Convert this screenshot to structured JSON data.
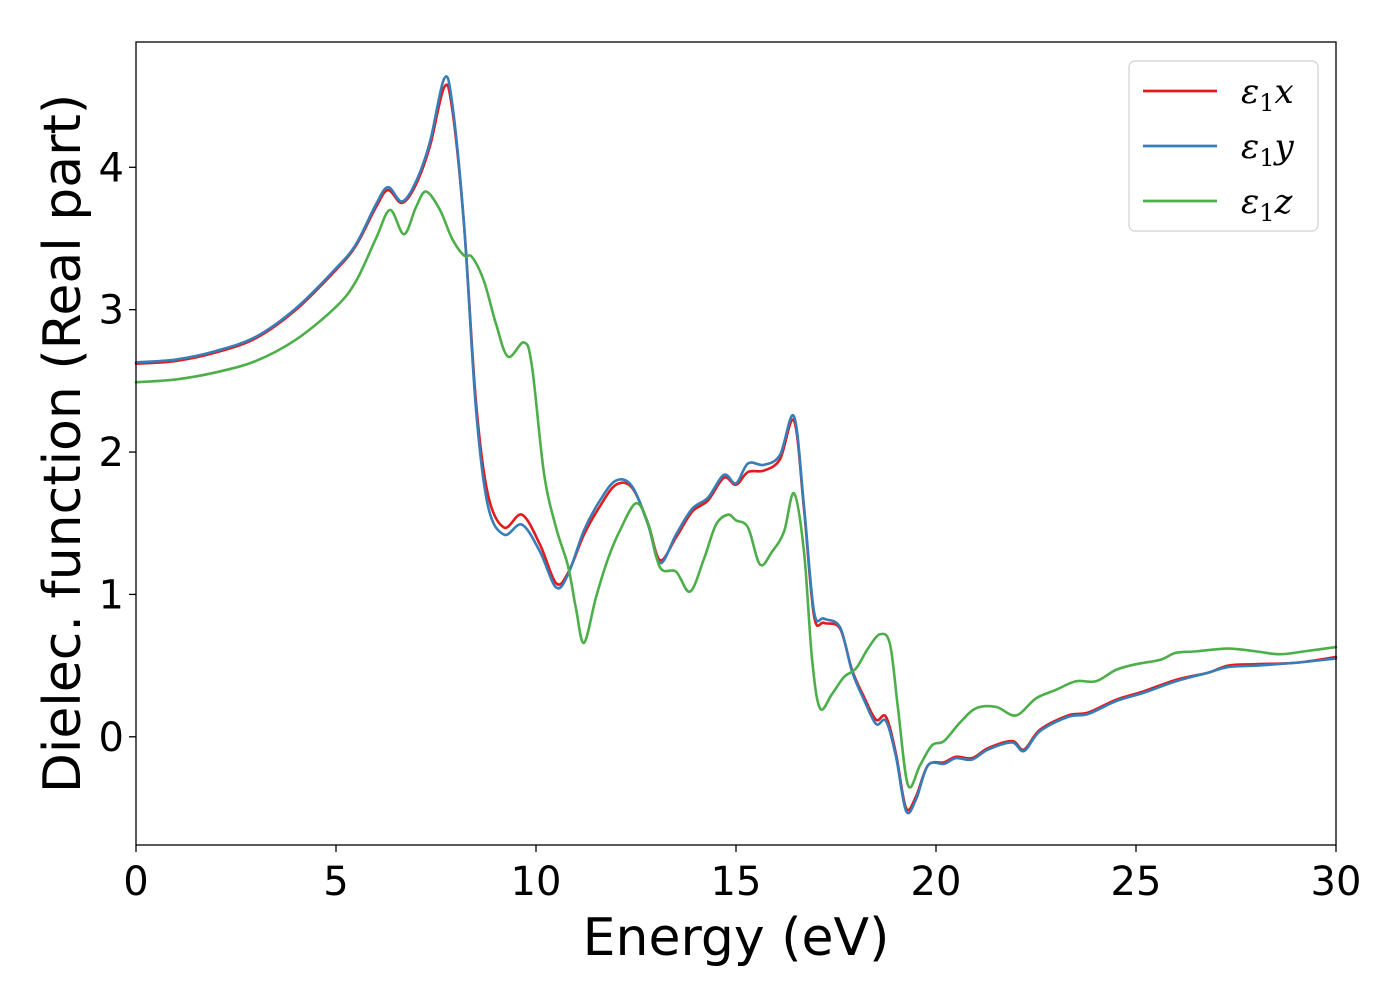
{
  "chart_data": {
    "type": "line",
    "xlabel": "Energy (eV)",
    "ylabel": "Dielec. function (Real part)",
    "xlim": [
      0,
      30
    ],
    "ylim": [
      -0.76,
      4.88
    ],
    "xticks": [
      0,
      5,
      10,
      15,
      20,
      25,
      30
    ],
    "yticks": [
      0,
      1,
      2,
      3,
      4
    ],
    "grid": false,
    "legend_position": "top-right",
    "series": [
      {
        "name": "ε1x",
        "symbol": "ε",
        "sub": "1",
        "suffix": "x",
        "color": "#e41a1c",
        "points": [
          [
            0,
            2.62
          ],
          [
            1,
            2.64
          ],
          [
            2,
            2.7
          ],
          [
            3,
            2.8
          ],
          [
            4,
            3.0
          ],
          [
            5,
            3.28
          ],
          [
            5.5,
            3.45
          ],
          [
            6,
            3.72
          ],
          [
            6.3,
            3.84
          ],
          [
            6.65,
            3.75
          ],
          [
            7,
            3.88
          ],
          [
            7.35,
            4.15
          ],
          [
            7.7,
            4.56
          ],
          [
            7.9,
            4.42
          ],
          [
            8.2,
            3.6
          ],
          [
            8.5,
            2.35
          ],
          [
            8.8,
            1.7
          ],
          [
            9.2,
            1.47
          ],
          [
            9.65,
            1.56
          ],
          [
            10.1,
            1.35
          ],
          [
            10.5,
            1.08
          ],
          [
            10.8,
            1.15
          ],
          [
            11.2,
            1.42
          ],
          [
            11.6,
            1.62
          ],
          [
            12.0,
            1.77
          ],
          [
            12.4,
            1.75
          ],
          [
            12.8,
            1.5
          ],
          [
            13.1,
            1.24
          ],
          [
            13.5,
            1.4
          ],
          [
            13.9,
            1.58
          ],
          [
            14.3,
            1.66
          ],
          [
            14.7,
            1.82
          ],
          [
            15.0,
            1.77
          ],
          [
            15.3,
            1.86
          ],
          [
            15.7,
            1.87
          ],
          [
            16.1,
            1.95
          ],
          [
            16.45,
            2.22
          ],
          [
            16.7,
            1.6
          ],
          [
            16.95,
            0.85
          ],
          [
            17.2,
            0.8
          ],
          [
            17.6,
            0.76
          ],
          [
            17.9,
            0.47
          ],
          [
            18.2,
            0.28
          ],
          [
            18.5,
            0.12
          ],
          [
            18.75,
            0.14
          ],
          [
            19.0,
            -0.12
          ],
          [
            19.25,
            -0.5
          ],
          [
            19.5,
            -0.42
          ],
          [
            19.8,
            -0.2
          ],
          [
            20.2,
            -0.18
          ],
          [
            20.5,
            -0.14
          ],
          [
            20.9,
            -0.15
          ],
          [
            21.3,
            -0.08
          ],
          [
            21.9,
            -0.03
          ],
          [
            22.2,
            -0.09
          ],
          [
            22.6,
            0.05
          ],
          [
            23.3,
            0.15
          ],
          [
            23.8,
            0.17
          ],
          [
            24.5,
            0.26
          ],
          [
            25.2,
            0.32
          ],
          [
            26.0,
            0.4
          ],
          [
            26.8,
            0.45
          ],
          [
            27.3,
            0.5
          ],
          [
            28.0,
            0.51
          ],
          [
            29.0,
            0.52
          ],
          [
            30,
            0.56
          ]
        ]
      },
      {
        "name": "ε1y",
        "symbol": "ε",
        "sub": "1",
        "suffix": "y",
        "color": "#377eb8",
        "points": [
          [
            0,
            2.63
          ],
          [
            1,
            2.65
          ],
          [
            2,
            2.71
          ],
          [
            3,
            2.81
          ],
          [
            4,
            3.01
          ],
          [
            5,
            3.29
          ],
          [
            5.5,
            3.46
          ],
          [
            6,
            3.74
          ],
          [
            6.3,
            3.86
          ],
          [
            6.65,
            3.76
          ],
          [
            7,
            3.9
          ],
          [
            7.35,
            4.18
          ],
          [
            7.7,
            4.62
          ],
          [
            7.9,
            4.46
          ],
          [
            8.2,
            3.6
          ],
          [
            8.5,
            2.3
          ],
          [
            8.8,
            1.62
          ],
          [
            9.2,
            1.42
          ],
          [
            9.65,
            1.49
          ],
          [
            10.1,
            1.3
          ],
          [
            10.5,
            1.05
          ],
          [
            10.8,
            1.14
          ],
          [
            11.2,
            1.45
          ],
          [
            11.6,
            1.66
          ],
          [
            12.0,
            1.8
          ],
          [
            12.4,
            1.76
          ],
          [
            12.8,
            1.49
          ],
          [
            13.1,
            1.22
          ],
          [
            13.5,
            1.42
          ],
          [
            13.9,
            1.6
          ],
          [
            14.3,
            1.68
          ],
          [
            14.7,
            1.84
          ],
          [
            15.0,
            1.78
          ],
          [
            15.3,
            1.92
          ],
          [
            15.7,
            1.91
          ],
          [
            16.1,
            1.98
          ],
          [
            16.45,
            2.25
          ],
          [
            16.7,
            1.62
          ],
          [
            16.95,
            0.88
          ],
          [
            17.2,
            0.83
          ],
          [
            17.6,
            0.77
          ],
          [
            17.9,
            0.46
          ],
          [
            18.2,
            0.26
          ],
          [
            18.5,
            0.09
          ],
          [
            18.75,
            0.11
          ],
          [
            19.0,
            -0.14
          ],
          [
            19.25,
            -0.52
          ],
          [
            19.5,
            -0.44
          ],
          [
            19.8,
            -0.2
          ],
          [
            20.2,
            -0.19
          ],
          [
            20.5,
            -0.15
          ],
          [
            20.9,
            -0.16
          ],
          [
            21.3,
            -0.09
          ],
          [
            21.9,
            -0.04
          ],
          [
            22.2,
            -0.1
          ],
          [
            22.6,
            0.04
          ],
          [
            23.3,
            0.14
          ],
          [
            23.8,
            0.16
          ],
          [
            24.5,
            0.25
          ],
          [
            25.2,
            0.31
          ],
          [
            26.0,
            0.39
          ],
          [
            26.8,
            0.45
          ],
          [
            27.3,
            0.49
          ],
          [
            28.0,
            0.5
          ],
          [
            29.0,
            0.52
          ],
          [
            30,
            0.55
          ]
        ]
      },
      {
        "name": "ε1z",
        "symbol": "ε",
        "sub": "1",
        "suffix": "z",
        "color": "#4daf4a",
        "points": [
          [
            0,
            2.49
          ],
          [
            1,
            2.51
          ],
          [
            2,
            2.56
          ],
          [
            3,
            2.64
          ],
          [
            4,
            2.79
          ],
          [
            5,
            3.02
          ],
          [
            5.5,
            3.2
          ],
          [
            6,
            3.5
          ],
          [
            6.35,
            3.7
          ],
          [
            6.7,
            3.53
          ],
          [
            7,
            3.72
          ],
          [
            7.25,
            3.83
          ],
          [
            7.6,
            3.7
          ],
          [
            7.9,
            3.5
          ],
          [
            8.2,
            3.38
          ],
          [
            8.4,
            3.37
          ],
          [
            8.7,
            3.2
          ],
          [
            9.0,
            2.9
          ],
          [
            9.3,
            2.67
          ],
          [
            9.7,
            2.77
          ],
          [
            9.9,
            2.6
          ],
          [
            10.2,
            1.85
          ],
          [
            10.5,
            1.47
          ],
          [
            10.8,
            1.2
          ],
          [
            11.0,
            0.9
          ],
          [
            11.2,
            0.66
          ],
          [
            11.5,
            0.98
          ],
          [
            11.8,
            1.25
          ],
          [
            12.1,
            1.45
          ],
          [
            12.5,
            1.64
          ],
          [
            12.8,
            1.5
          ],
          [
            13.1,
            1.19
          ],
          [
            13.5,
            1.16
          ],
          [
            13.85,
            1.02
          ],
          [
            14.2,
            1.25
          ],
          [
            14.5,
            1.49
          ],
          [
            14.8,
            1.56
          ],
          [
            15.0,
            1.52
          ],
          [
            15.3,
            1.47
          ],
          [
            15.6,
            1.21
          ],
          [
            15.9,
            1.3
          ],
          [
            16.2,
            1.44
          ],
          [
            16.45,
            1.71
          ],
          [
            16.7,
            1.3
          ],
          [
            16.9,
            0.55
          ],
          [
            17.1,
            0.2
          ],
          [
            17.4,
            0.3
          ],
          [
            17.7,
            0.42
          ],
          [
            18.0,
            0.48
          ],
          [
            18.3,
            0.62
          ],
          [
            18.6,
            0.72
          ],
          [
            18.85,
            0.65
          ],
          [
            19.05,
            0.2
          ],
          [
            19.3,
            -0.34
          ],
          [
            19.6,
            -0.2
          ],
          [
            19.9,
            -0.06
          ],
          [
            20.2,
            -0.03
          ],
          [
            20.6,
            0.1
          ],
          [
            21.0,
            0.2
          ],
          [
            21.5,
            0.21
          ],
          [
            22.0,
            0.15
          ],
          [
            22.5,
            0.27
          ],
          [
            23.0,
            0.33
          ],
          [
            23.5,
            0.39
          ],
          [
            24.0,
            0.39
          ],
          [
            24.5,
            0.47
          ],
          [
            25.0,
            0.51
          ],
          [
            25.6,
            0.54
          ],
          [
            26.0,
            0.59
          ],
          [
            26.5,
            0.6
          ],
          [
            27.3,
            0.62
          ],
          [
            28.0,
            0.6
          ],
          [
            28.6,
            0.58
          ],
          [
            29.2,
            0.6
          ],
          [
            30,
            0.63
          ]
        ]
      }
    ]
  }
}
